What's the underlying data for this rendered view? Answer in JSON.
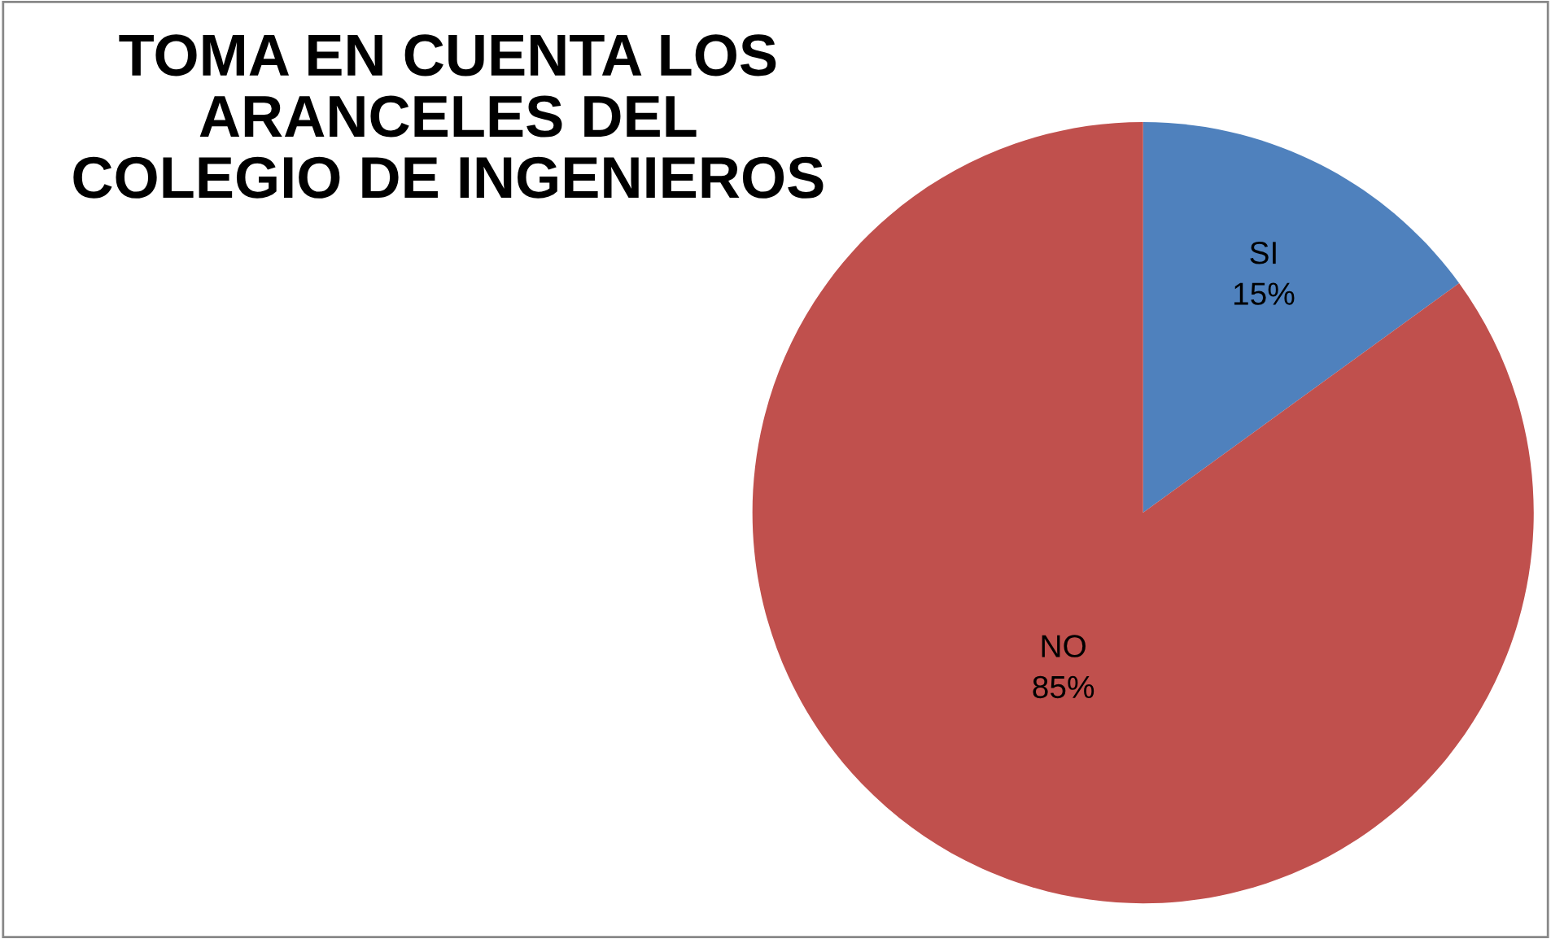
{
  "chart_data": {
    "type": "pie",
    "title": "TOMA EN CUENTA LOS\nARANCELES DEL\nCOLEGIO DE INGENIEROS",
    "categories": [
      "SI",
      "NO"
    ],
    "values": [
      15,
      85
    ],
    "value_labels": [
      "15%",
      "85%"
    ],
    "colors": [
      "#4f81bd",
      "#c0504d"
    ]
  }
}
